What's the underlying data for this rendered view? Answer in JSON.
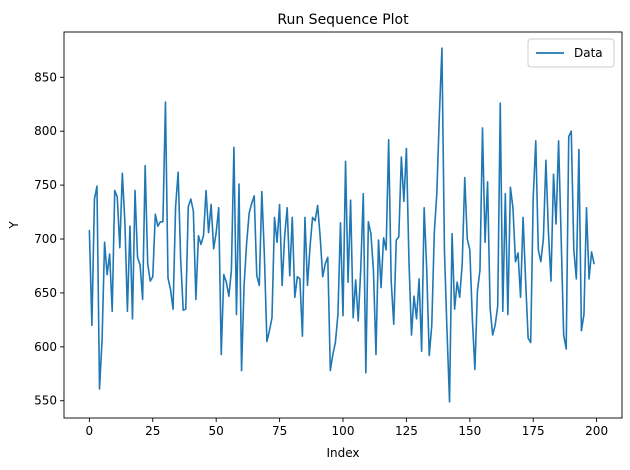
{
  "chart_data": {
    "type": "line",
    "title": "Run Sequence Plot",
    "xlabel": "Index",
    "ylabel": "Y",
    "xlim": [
      -10,
      210
    ],
    "ylim": [
      534,
      892
    ],
    "xticks": [
      0,
      25,
      50,
      75,
      100,
      125,
      150,
      175,
      200
    ],
    "yticks": [
      550,
      600,
      650,
      700,
      750,
      800,
      850
    ],
    "grid": false,
    "legend": "top-right",
    "color": "#1f77b4",
    "series": [
      {
        "name": "Data",
        "x": [
          0,
          1,
          2,
          3,
          4,
          5,
          6,
          7,
          8,
          9,
          10,
          11,
          12,
          13,
          14,
          15,
          16,
          17,
          18,
          19,
          20,
          21,
          22,
          23,
          24,
          25,
          26,
          27,
          28,
          29,
          30,
          31,
          32,
          33,
          34,
          35,
          36,
          37,
          38,
          39,
          40,
          41,
          42,
          43,
          44,
          45,
          46,
          47,
          48,
          49,
          50,
          51,
          52,
          53,
          54,
          55,
          56,
          57,
          58,
          59,
          60,
          61,
          62,
          63,
          64,
          65,
          66,
          67,
          68,
          69,
          70,
          71,
          72,
          73,
          74,
          75,
          76,
          77,
          78,
          79,
          80,
          81,
          82,
          83,
          84,
          85,
          86,
          87,
          88,
          89,
          90,
          91,
          92,
          93,
          94,
          95,
          96,
          97,
          98,
          99,
          100,
          101,
          102,
          103,
          104,
          105,
          106,
          107,
          108,
          109,
          110,
          111,
          112,
          113,
          114,
          115,
          116,
          117,
          118,
          119,
          120,
          121,
          122,
          123,
          124,
          125,
          126,
          127,
          128,
          129,
          130,
          131,
          132,
          133,
          134,
          135,
          136,
          137,
          138,
          139,
          140,
          141,
          142,
          143,
          144,
          145,
          146,
          147,
          148,
          149,
          150,
          151,
          152,
          153,
          154,
          155,
          156,
          157,
          158,
          159,
          160,
          161,
          162,
          163,
          164,
          165,
          166,
          167,
          168,
          169,
          170,
          171,
          172,
          173,
          174,
          175,
          176,
          177,
          178,
          179,
          180,
          181,
          182,
          183,
          184,
          185,
          186,
          187,
          188,
          189,
          190,
          191,
          192,
          193,
          194,
          195,
          196,
          197,
          198,
          199
        ],
        "values": [
          708,
          620,
          737,
          749,
          561,
          606,
          697,
          667,
          686,
          633,
          745,
          739,
          692,
          761,
          716,
          633,
          712,
          626,
          745,
          683,
          676,
          644,
          768,
          677,
          661,
          665,
          723,
          712,
          716,
          716,
          827,
          664,
          653,
          635,
          730,
          762,
          681,
          634,
          635,
          730,
          737,
          726,
          644,
          703,
          695,
          703,
          745,
          706,
          732,
          691,
          706,
          729,
          593,
          667,
          660,
          647,
          671,
          785,
          630,
          751,
          578,
          657,
          696,
          724,
          733,
          740,
          666,
          657,
          744,
          685,
          605,
          615,
          627,
          720,
          697,
          732,
          657,
          703,
          729,
          666,
          720,
          646,
          665,
          663,
          610,
          720,
          657,
          693,
          720,
          717,
          731,
          702,
          665,
          677,
          683,
          578,
          593,
          604,
          630,
          715,
          629,
          772,
          660,
          736,
          627,
          662,
          624,
          672,
          742,
          576,
          716,
          705,
          671,
          593,
          699,
          655,
          701,
          690,
          792,
          661,
          621,
          699,
          702,
          776,
          735,
          784,
          680,
          611,
          647,
          626,
          663,
          596,
          729,
          672,
          592,
          620,
          706,
          743,
          815,
          877,
          689,
          615,
          549,
          705,
          635,
          660,
          646,
          677,
          757,
          700,
          690,
          626,
          579,
          652,
          671,
          803,
          697,
          753,
          636,
          611,
          620,
          638,
          826,
          633,
          742,
          630,
          748,
          729,
          679,
          687,
          646,
          720,
          661,
          608,
          604,
          739,
          791,
          690,
          679,
          700,
          773,
          706,
          661,
          760,
          714,
          791,
          702,
          611,
          598,
          795,
          800,
          690,
          663,
          783,
          615,
          630,
          729,
          663,
          688,
          677
        ]
      }
    ]
  }
}
